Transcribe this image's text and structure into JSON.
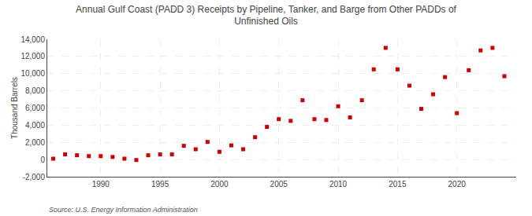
{
  "chart_data": {
    "type": "scatter",
    "title": "Annual Gulf Coast (PADD 3) Receipts by Pipeline, Tanker, and Barge from Other PADDs of\nUnfinished Oils",
    "ylabel": "Thousand Barrels",
    "annotations": [
      "Source: U.S. Energy Information Administration"
    ],
    "x": [
      1986,
      1987,
      1988,
      1989,
      1990,
      1991,
      1992,
      1993,
      1994,
      1995,
      1996,
      1997,
      1998,
      1999,
      2000,
      2001,
      2002,
      2003,
      2004,
      2005,
      2006,
      2007,
      2008,
      2009,
      2010,
      2011,
      2012,
      2013,
      2014,
      2015,
      2016,
      2017,
      2018,
      2019,
      2020,
      2021,
      2022,
      2023,
      2024
    ],
    "values": [
      100,
      600,
      500,
      400,
      400,
      300,
      100,
      -50,
      500,
      600,
      600,
      1600,
      1200,
      2050,
      900,
      1650,
      1200,
      2600,
      3800,
      4700,
      4500,
      6900,
      4700,
      4600,
      6200,
      4900,
      6900,
      10500,
      13000,
      10500,
      8600,
      5900,
      7600,
      9600,
      5400,
      10400,
      12700,
      13000,
      9700
    ],
    "color": "#cc0000",
    "marker": "square",
    "xlim": [
      1985.5,
      2025
    ],
    "xticks": [
      1990,
      1995,
      2000,
      2005,
      2010,
      2015,
      2020
    ],
    "ylim": [
      -2000,
      14000
    ],
    "yticks": [
      {
        "value": -2000,
        "label": "-2,000"
      },
      0,
      {
        "value": 2000,
        "label": "2,000"
      },
      {
        "value": 4000,
        "label": "4,000"
      },
      {
        "value": 6000,
        "label": "6,000"
      },
      {
        "value": 8000,
        "label": "8,000"
      },
      {
        "value": 10000,
        "label": "10,000"
      },
      {
        "value": 12000,
        "label": "12,000"
      },
      {
        "value": 14000,
        "label": "14,000"
      }
    ],
    "grid": true
  }
}
